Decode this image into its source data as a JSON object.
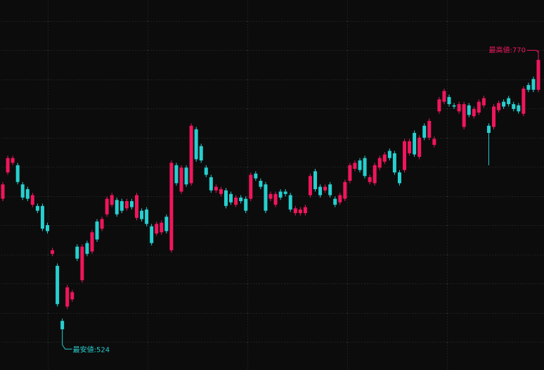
{
  "chart_data": {
    "type": "candlestick",
    "up_color": "#f0165c",
    "down_color": "#28cfcf",
    "ylim": [
      503,
      812
    ],
    "annotations": {
      "high": "最高値:770",
      "low": "最安値:524"
    },
    "open": [
      646,
      668,
      676,
      674,
      658,
      654,
      641,
      640,
      640,
      624,
      600,
      590,
      544,
      556,
      562,
      606,
      578,
      609,
      602,
      627,
      621,
      633,
      641,
      645,
      644,
      638,
      644,
      630,
      636,
      637,
      623,
      617,
      618,
      631,
      603,
      674,
      652,
      672,
      659,
      704,
      690,
      672,
      664,
      653,
      650,
      653,
      650,
      641,
      647,
      646,
      646,
      667,
      661,
      658,
      646,
      641,
      652,
      652,
      649,
      634,
      634,
      634,
      649,
      669,
      656,
      653,
      658,
      646,
      643,
      646,
      661,
      671,
      678,
      680,
      660,
      659,
      672,
      677,
      686,
      684,
      668,
      670,
      684,
      701,
      681,
      707,
      697,
      691,
      719,
      727,
      731,
      724,
      719,
      706,
      724,
      715,
      718,
      724,
      707,
      706,
      720,
      727,
      730,
      725,
      724,
      717,
      741,
      746,
      737
    ],
    "high": [
      660,
      682,
      682,
      676,
      660,
      656,
      651,
      642,
      642,
      626,
      605,
      592,
      546,
      574,
      570,
      608,
      608,
      611,
      620,
      629,
      631,
      648,
      651,
      647,
      646,
      646,
      646,
      651,
      638,
      639,
      625,
      627,
      628,
      633,
      678,
      676,
      674,
      674,
      709,
      706,
      692,
      674,
      666,
      658,
      656,
      655,
      652,
      649,
      649,
      648,
      668,
      669,
      663,
      660,
      652,
      652,
      654,
      654,
      651,
      640,
      639,
      641,
      667,
      671,
      658,
      658,
      660,
      648,
      651,
      662,
      676,
      678,
      680,
      682,
      666,
      676,
      682,
      685,
      688,
      686,
      670,
      696,
      696,
      703,
      699,
      709,
      713,
      698,
      731,
      738,
      733,
      726,
      727,
      727,
      726,
      723,
      729,
      732,
      709,
      725,
      728,
      729,
      732,
      727,
      726,
      740,
      743,
      748,
      770
    ],
    "low": [
      644,
      666,
      674,
      658,
      645,
      644,
      639,
      634,
      619,
      617,
      598,
      556,
      524,
      554,
      560,
      594,
      576,
      598,
      600,
      610,
      619,
      631,
      639,
      631,
      634,
      636,
      637,
      628,
      627,
      623,
      607,
      615,
      616,
      617,
      601,
      657,
      650,
      656,
      657,
      677,
      676,
      664,
      651,
      651,
      648,
      638,
      641,
      639,
      642,
      634,
      644,
      661,
      654,
      634,
      644,
      639,
      645,
      648,
      635,
      632,
      632,
      632,
      647,
      652,
      647,
      651,
      647,
      639,
      641,
      644,
      659,
      669,
      668,
      663,
      658,
      657,
      670,
      675,
      678,
      666,
      657,
      668,
      682,
      681,
      679,
      695,
      695,
      689,
      717,
      725,
      723,
      721,
      717,
      704,
      714,
      713,
      716,
      722,
      674,
      704,
      718,
      721,
      723,
      719,
      717,
      715,
      735,
      735,
      735
    ],
    "close": [
      658,
      680,
      680,
      660,
      647,
      646,
      649,
      636,
      621,
      619,
      603,
      558,
      537,
      572,
      568,
      596,
      606,
      600,
      618,
      612,
      629,
      646,
      649,
      633,
      636,
      644,
      639,
      649,
      629,
      625,
      609,
      625,
      626,
      619,
      676,
      659,
      672,
      658,
      707,
      679,
      678,
      666,
      653,
      656,
      654,
      640,
      643,
      647,
      644,
      636,
      666,
      663,
      656,
      636,
      650,
      650,
      647,
      650,
      637,
      638,
      637,
      639,
      665,
      654,
      649,
      656,
      649,
      641,
      649,
      660,
      674,
      676,
      670,
      665,
      664,
      674,
      680,
      683,
      680,
      668,
      659,
      694,
      694,
      683,
      697,
      697,
      711,
      696,
      729,
      736,
      725,
      723,
      725,
      725,
      716,
      721,
      727,
      730,
      701,
      723,
      726,
      723,
      725,
      721,
      719,
      738,
      737,
      737,
      762
    ]
  }
}
